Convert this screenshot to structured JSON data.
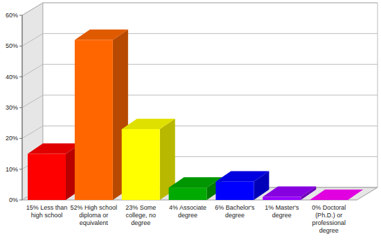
{
  "chart_data": {
    "type": "bar",
    "categories": [
      "15% Less than high school",
      "52% High school diploma or equivalent",
      "23% Some college, no degree",
      "4% Associate degree",
      "6% Bachelor's degree",
      "1% Master's degree",
      "0% Doctoral (Ph.D.) or professional degree"
    ],
    "values": [
      15,
      52,
      23,
      4,
      6,
      1,
      0
    ],
    "colors": [
      "#ff0000",
      "#ff6600",
      "#ffff00",
      "#00aa00",
      "#0000ff",
      "#9900ff",
      "#ff00ff"
    ],
    "ylim": [
      0,
      60
    ],
    "yticks": [
      {
        "value": 0,
        "label": "0%"
      },
      {
        "value": 10,
        "label": "10%"
      },
      {
        "value": 20,
        "label": "20%"
      },
      {
        "value": 30,
        "label": "30%"
      },
      {
        "value": 40,
        "label": "40%"
      },
      {
        "value": 50,
        "label": "50%"
      },
      {
        "value": 60,
        "label": "60%"
      }
    ],
    "grid": true
  }
}
